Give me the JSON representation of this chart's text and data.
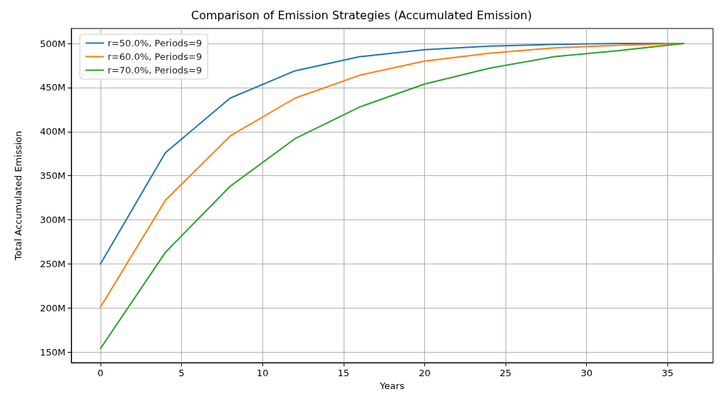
{
  "chart_data": {
    "type": "line",
    "title": "Comparison of Emission Strategies (Accumulated Emission)",
    "xlabel": "Years",
    "ylabel": "Total Accumulated Emission",
    "x": [
      0,
      4,
      8,
      12,
      16,
      20,
      24,
      28,
      32,
      36
    ],
    "series": [
      {
        "name": "r=50.0%, Periods=9",
        "color": "#1f77b4",
        "values": [
          250,
          376,
          438,
          469,
          485,
          493,
          497,
          499,
          500,
          500
        ]
      },
      {
        "name": "r=60.0%, Periods=9",
        "color": "#ff7f0e",
        "values": [
          201,
          322,
          395,
          438,
          464,
          480,
          489,
          495,
          498,
          500
        ]
      },
      {
        "name": "r=70.0%, Periods=9",
        "color": "#2ca02c",
        "values": [
          154,
          263,
          338,
          392,
          428,
          454,
          472,
          485,
          492,
          500
        ]
      }
    ],
    "xlim": [
      -1.8,
      37.8
    ],
    "xticks": [
      0,
      5,
      10,
      15,
      20,
      25,
      30,
      35
    ],
    "ylim": [
      138,
      517
    ],
    "yticks": [
      {
        "value": 150,
        "label": "150M"
      },
      {
        "value": 200,
        "label": "200M"
      },
      {
        "value": 250,
        "label": "250M"
      },
      {
        "value": 300,
        "label": "300M"
      },
      {
        "value": 350,
        "label": "350M"
      },
      {
        "value": 400,
        "label": "400M"
      },
      {
        "value": 450,
        "label": "450M"
      },
      {
        "value": 500,
        "label": "500M"
      }
    ],
    "grid": true,
    "legend": "top left",
    "marker": "none",
    "line_style": "solid"
  }
}
